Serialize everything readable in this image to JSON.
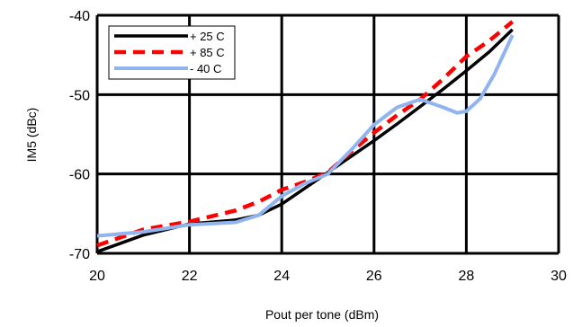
{
  "chart_data": {
    "type": "line",
    "title": "",
    "xlabel": "Pout per tone (dBm)",
    "ylabel": "IM5 (dBc)",
    "xlim": [
      20,
      30
    ],
    "ylim": [
      -70,
      -40
    ],
    "xticks": [
      20,
      22,
      24,
      26,
      28,
      30
    ],
    "yticks": [
      -40,
      -50,
      -60,
      -70
    ],
    "grid": true,
    "legend_position": "top-left",
    "series": [
      {
        "name": "+ 25 C",
        "color": "#000000",
        "style": "solid",
        "x": [
          20,
          21,
          22,
          23,
          23.5,
          24,
          24.5,
          25,
          25.5,
          26,
          26.5,
          27,
          27.5,
          28,
          28.5,
          29
        ],
        "y": [
          -69.8,
          -67.7,
          -66.3,
          -65.8,
          -65.2,
          -63.8,
          -61.8,
          -59.8,
          -57.8,
          -55.8,
          -53.7,
          -51.5,
          -49.3,
          -47.0,
          -44.6,
          -41.8
        ]
      },
      {
        "name": "+ 85 C",
        "color": "#ff0000",
        "style": "dashed",
        "x": [
          20,
          21,
          22,
          23,
          23.5,
          24,
          24.5,
          25,
          25.5,
          26,
          26.5,
          27,
          27.5,
          28,
          28.5,
          29
        ],
        "y": [
          -69.0,
          -67.0,
          -66.0,
          -64.6,
          -63.5,
          -62.0,
          -61.0,
          -59.8,
          -57.2,
          -54.8,
          -52.6,
          -50.6,
          -48.0,
          -45.2,
          -43.2,
          -40.8
        ]
      },
      {
        "name": "- 40 C",
        "color": "#8fb4ee",
        "style": "solid-light",
        "x": [
          20,
          21,
          22,
          23,
          23.5,
          24,
          24.5,
          25,
          25.5,
          26,
          26.5,
          27,
          27.5,
          27.8,
          28,
          28.3,
          28.6,
          29
        ],
        "y": [
          -67.8,
          -67.3,
          -66.4,
          -66.1,
          -65.2,
          -62.8,
          -61.2,
          -60.0,
          -57.0,
          -53.8,
          -51.6,
          -50.6,
          -51.6,
          -52.3,
          -52.1,
          -50.5,
          -47.5,
          -42.5
        ]
      }
    ]
  }
}
